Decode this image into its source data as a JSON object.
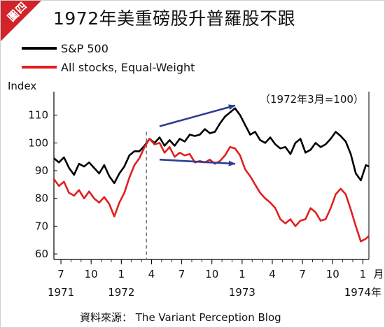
{
  "badge": {
    "text": "圖四",
    "color": "#d2232a"
  },
  "title": "1972年美重磅股升普羅股不跟",
  "source": "資料來源： The Variant Perception Blog",
  "chart_data": {
    "type": "line",
    "title": "1972年美重磅股升普羅股不跟",
    "ylabel": "Index",
    "ylim": [
      58,
      118
    ],
    "yticks": [
      60,
      70,
      80,
      90,
      100,
      110
    ],
    "annotation": "（1972年3月=100）",
    "x_tick_labels": [
      "7",
      "10",
      "1",
      "4",
      "7",
      "10",
      "1",
      "4",
      "7",
      "10",
      "1"
    ],
    "x_tick_month_index": [
      6,
      9,
      12,
      15,
      18,
      21,
      24,
      27,
      30,
      33,
      36
    ],
    "year_labels": [
      {
        "text": "1971",
        "month_index": 6
      },
      {
        "text": "1972",
        "month_index": 12
      },
      {
        "text": "1973",
        "month_index": 24
      },
      {
        "text": "1974年",
        "month_index": 36
      }
    ],
    "x_unit_label": "月",
    "month_index_note": "month_index 0 = Jan 1971",
    "xlim": [
      5.3,
      36.6
    ],
    "reference_line": {
      "month_index": 14.5,
      "style": "dashed"
    },
    "series": [
      {
        "name": "S&P 500",
        "color": "#000000",
        "x": [
          5.3,
          5.8,
          6.3,
          6.8,
          7.3,
          7.8,
          8.3,
          8.8,
          9.3,
          9.8,
          10.3,
          10.8,
          11.3,
          11.8,
          12.3,
          12.8,
          13.3,
          13.8,
          14.3,
          14.8,
          15.3,
          15.8,
          16.3,
          16.8,
          17.3,
          17.8,
          18.3,
          18.8,
          19.3,
          19.8,
          20.3,
          20.8,
          21.3,
          21.8,
          22.3,
          22.8,
          23.3,
          23.8,
          24.3,
          24.8,
          25.3,
          25.8,
          26.3,
          26.8,
          27.3,
          27.8,
          28.3,
          28.8,
          29.3,
          29.8,
          30.3,
          30.8,
          31.3,
          31.8,
          32.3,
          32.8,
          33.3,
          33.8,
          34.3,
          34.8,
          35.3,
          35.8,
          36.3,
          36.6
        ],
        "values": [
          94.5,
          93.0,
          94.8,
          91.0,
          88.5,
          92.5,
          91.5,
          93.0,
          91.0,
          89.0,
          92.0,
          88.0,
          85.5,
          89.0,
          91.5,
          95.5,
          97.0,
          97.0,
          99.0,
          101.5,
          100.0,
          102.0,
          99.0,
          101.0,
          99.0,
          101.5,
          100.5,
          103.0,
          102.5,
          103.0,
          105.0,
          103.5,
          104.0,
          107.0,
          109.5,
          111.0,
          112.5,
          110.0,
          106.5,
          103.0,
          104.0,
          101.0,
          100.0,
          102.0,
          99.5,
          98.0,
          98.5,
          96.0,
          100.0,
          101.5,
          96.5,
          97.5,
          100.0,
          98.5,
          99.5,
          101.5,
          104.0,
          102.5,
          100.5,
          96.0,
          89.0,
          86.5,
          92.0,
          91.5
        ]
      },
      {
        "name": "All stocks, Equal-Weight",
        "color": "#e02020",
        "x": [
          5.3,
          5.8,
          6.3,
          6.8,
          7.3,
          7.8,
          8.3,
          8.8,
          9.3,
          9.8,
          10.3,
          10.8,
          11.3,
          11.8,
          12.3,
          12.8,
          13.3,
          13.8,
          14.3,
          14.8,
          15.3,
          15.8,
          16.3,
          16.8,
          17.3,
          17.8,
          18.3,
          18.8,
          19.3,
          19.8,
          20.3,
          20.8,
          21.3,
          21.8,
          22.3,
          22.8,
          23.3,
          23.8,
          24.3,
          24.8,
          25.3,
          25.8,
          26.3,
          26.8,
          27.3,
          27.8,
          28.3,
          28.8,
          29.3,
          29.8,
          30.3,
          30.8,
          31.3,
          31.8,
          32.3,
          32.8,
          33.3,
          33.8,
          34.3,
          34.8,
          35.3,
          35.8,
          36.3,
          36.6
        ],
        "values": [
          87.0,
          84.5,
          86.0,
          82.0,
          81.0,
          83.0,
          80.0,
          82.5,
          80.0,
          78.5,
          80.5,
          78.0,
          73.5,
          78.5,
          82.0,
          87.5,
          92.0,
          94.5,
          98.5,
          101.5,
          99.5,
          100.0,
          96.5,
          98.5,
          95.0,
          96.5,
          95.5,
          96.0,
          93.0,
          93.5,
          93.0,
          94.0,
          92.5,
          93.5,
          95.5,
          98.5,
          98.0,
          95.5,
          90.5,
          88.0,
          85.0,
          82.0,
          80.0,
          78.5,
          76.5,
          72.5,
          71.0,
          72.5,
          70.0,
          72.0,
          72.5,
          76.5,
          75.0,
          72.0,
          72.5,
          76.5,
          81.5,
          83.5,
          81.5,
          76.0,
          70.0,
          64.5,
          65.5,
          66.5
        ]
      }
    ],
    "arrows": [
      {
        "color": "#2b3f93",
        "from": {
          "month_index": 15.8,
          "value": 106.0
        },
        "to": {
          "month_index": 23.3,
          "value": 113.5
        }
      },
      {
        "color": "#2b3f93",
        "from": {
          "month_index": 15.8,
          "value": 94.0
        },
        "to": {
          "month_index": 23.3,
          "value": 92.5
        }
      }
    ]
  }
}
